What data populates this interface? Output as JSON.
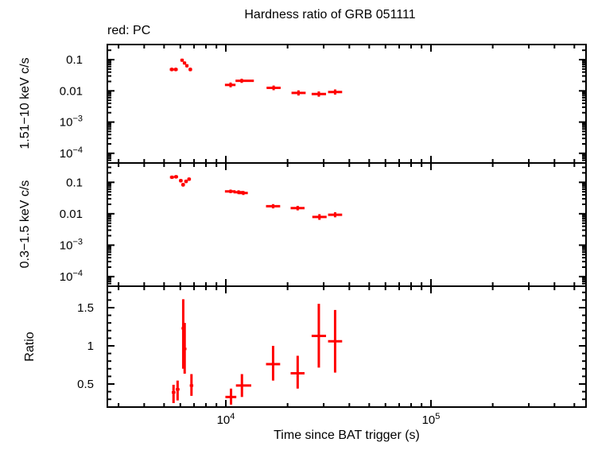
{
  "title": "Hardness ratio of GRB 051111",
  "legend": "red: PC",
  "x_axis_label": "Time since BAT trigger (s)",
  "colors": {
    "data": "#ff0000",
    "axis": "#000000"
  },
  "chart_data": {
    "type": "scatter",
    "x_axis": {
      "label": "Time since BAT trigger (s)",
      "scale": "log",
      "range": [
        2645,
        570000
      ],
      "major_ticks": [
        {
          "v": 10000,
          "m": "10",
          "e": "4"
        },
        {
          "v": 100000,
          "m": "10",
          "e": "5"
        }
      ]
    },
    "point_format": [
      "t",
      "t_lo",
      "t_hi",
      "y",
      "y_lo",
      "y_hi"
    ],
    "panels": [
      {
        "name": "hard-band",
        "y_label": "1.51−10 keV c/s",
        "y_scale": "log",
        "y_range": [
          4.9e-05,
          0.305
        ],
        "y_major_ticks": [
          {
            "v": 0.1,
            "t": "0.1"
          },
          {
            "v": 0.01,
            "t": "0.01"
          },
          {
            "v": 0.001,
            "m": "10",
            "e": "−3"
          },
          {
            "v": 0.0001,
            "m": "10",
            "e": "−4"
          }
        ],
        "points": [
          [
            5450,
            5330,
            5580,
            0.0485,
            0.0425,
            0.0555
          ],
          [
            5700,
            5580,
            5830,
            0.0485,
            0.0425,
            0.0555
          ],
          [
            6120,
            6000,
            6240,
            0.096,
            0.085,
            0.108
          ],
          [
            6290,
            6170,
            6410,
            0.078,
            0.069,
            0.088
          ],
          [
            6460,
            6340,
            6580,
            0.064,
            0.056,
            0.072
          ],
          [
            6710,
            6580,
            6850,
            0.0485,
            0.0425,
            0.0555
          ],
          [
            10550,
            9900,
            11150,
            0.0155,
            0.013,
            0.0185
          ],
          [
            11950,
            11150,
            13700,
            0.021,
            0.018,
            0.0245
          ],
          [
            17100,
            15800,
            18500,
            0.0125,
            0.0105,
            0.0148
          ],
          [
            22600,
            20900,
            24500,
            0.0086,
            0.0071,
            0.0104
          ],
          [
            28400,
            26200,
            30800,
            0.0079,
            0.0065,
            0.0096
          ],
          [
            34100,
            31500,
            36900,
            0.0092,
            0.0076,
            0.0111
          ]
        ]
      },
      {
        "name": "soft-band",
        "y_label": "0.3−1.5 keV c/s",
        "y_scale": "log",
        "y_range": [
          4.94e-05,
          0.412
        ],
        "y_major_ticks": [
          {
            "v": 0.1,
            "t": "0.1"
          },
          {
            "v": 0.01,
            "t": "0.01"
          },
          {
            "v": 0.001,
            "m": "10",
            "e": "−3"
          },
          {
            "v": 0.0001,
            "m": "10",
            "e": "−4"
          }
        ],
        "points": [
          [
            5460,
            5340,
            5590,
            0.145,
            0.128,
            0.164
          ],
          [
            5720,
            5590,
            5850,
            0.15,
            0.132,
            0.17
          ],
          [
            6030,
            5910,
            6160,
            0.113,
            0.099,
            0.128
          ],
          [
            6190,
            6060,
            6320,
            0.084,
            0.073,
            0.096
          ],
          [
            6400,
            6270,
            6530,
            0.107,
            0.094,
            0.122
          ],
          [
            6620,
            6490,
            6760,
            0.126,
            0.111,
            0.143
          ],
          [
            10550,
            9900,
            11150,
            0.0514,
            0.045,
            0.0587
          ],
          [
            11540,
            10900,
            12150,
            0.0484,
            0.042,
            0.0557
          ],
          [
            12170,
            11550,
            12800,
            0.0457,
            0.0395,
            0.0529
          ],
          [
            17000,
            15700,
            18400,
            0.0173,
            0.0148,
            0.0202
          ],
          [
            22400,
            20700,
            24200,
            0.0151,
            0.0128,
            0.0178
          ],
          [
            28600,
            26400,
            31000,
            0.0079,
            0.0064,
            0.0097
          ],
          [
            34100,
            31500,
            36900,
            0.0093,
            0.0077,
            0.0112
          ]
        ]
      },
      {
        "name": "ratio",
        "y_label": "Ratio",
        "y_scale": "linear",
        "y_range": [
          0.198,
          1.781
        ],
        "y_major_ticks": [
          {
            "v": 1.5,
            "t": "1.5"
          },
          {
            "v": 1.0,
            "t": "1"
          },
          {
            "v": 0.5,
            "t": "0.5"
          }
        ],
        "points": [
          [
            5560,
            5450,
            5680,
            0.39,
            0.25,
            0.49
          ],
          [
            5820,
            5700,
            5950,
            0.43,
            0.285,
            0.545
          ],
          [
            6200,
            6080,
            6320,
            1.23,
            0.7,
            1.61
          ],
          [
            6300,
            6180,
            6430,
            0.96,
            0.635,
            1.3
          ],
          [
            6800,
            6670,
            6940,
            0.48,
            0.345,
            0.63
          ],
          [
            10600,
            9950,
            11250,
            0.33,
            0.23,
            0.44
          ],
          [
            11980,
            11200,
            13300,
            0.48,
            0.33,
            0.63
          ],
          [
            17000,
            15700,
            18400,
            0.76,
            0.545,
            1.0
          ],
          [
            22400,
            20700,
            24200,
            0.64,
            0.44,
            0.87
          ],
          [
            28400,
            26200,
            30800,
            1.13,
            0.715,
            1.55
          ],
          [
            34100,
            31500,
            36900,
            1.06,
            0.65,
            1.47
          ]
        ]
      }
    ]
  }
}
